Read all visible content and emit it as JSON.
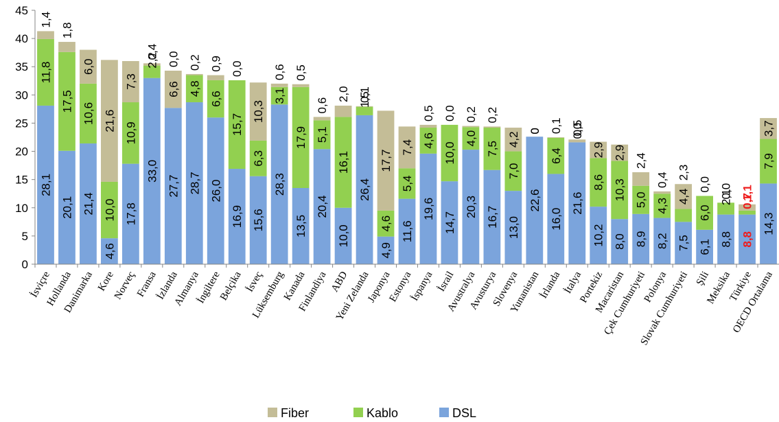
{
  "chart_data": {
    "type": "bar",
    "stacked": true,
    "title": "",
    "xlabel": "",
    "ylabel": "",
    "ylim": [
      0,
      45
    ],
    "yticks": [
      0,
      5,
      10,
      15,
      20,
      25,
      30,
      35,
      40,
      45
    ],
    "ytick_labels": [
      "0",
      "5",
      "10",
      "15",
      "20",
      "25",
      "30",
      "35",
      "40",
      "45"
    ],
    "grid": false,
    "legend_position": "bottom",
    "categories": [
      "İsviçre",
      "Hollanda",
      "Danimarka",
      "Kore",
      "Norveç",
      "Fransa",
      "İzlanda",
      "Almanya",
      "İngiltere",
      "Belçika",
      "İsveç",
      "Lüksemburg",
      "Kanada",
      "Finlandiya",
      "ABD",
      "Yeni Zelanda",
      "Japonya",
      "Estonya",
      "İspanya",
      "İsrail",
      "Avustralya",
      "Avusturya",
      "Slovenya",
      "Yunanistan",
      "İrlanda",
      "İtalya",
      "Portekiz",
      "Macaristan",
      "Çek Cumhuriyeti",
      "Polonya",
      "Slovak Cumhuriyeti",
      "Şili",
      "Meksika",
      "Türkiye",
      "OECD Ortalama"
    ],
    "highlight_category": "Türkiye",
    "highlight_color": "#ee1c1c",
    "series": [
      {
        "name": "DSL",
        "color": "#7ba4dc",
        "values": [
          28.1,
          20.1,
          21.4,
          4.6,
          17.8,
          33.0,
          27.7,
          28.7,
          26.0,
          16.9,
          15.6,
          28.3,
          13.5,
          20.4,
          10.0,
          26.4,
          4.9,
          11.6,
          19.6,
          14.7,
          20.3,
          16.7,
          13.0,
          22.6,
          16.0,
          21.6,
          10.2,
          8.0,
          8.9,
          8.2,
          7.5,
          6.1,
          8.8,
          8.8,
          14.3
        ],
        "labels": [
          "28,1",
          "20,1",
          "21,4",
          "4,6",
          "17,8",
          "33,0",
          "27,7",
          "28,7",
          "26,0",
          "16,9",
          "15,6",
          "28,3",
          "13,5",
          "20,4",
          "10,0",
          "26,4",
          "4,9",
          "11,6",
          "19,6",
          "14,7",
          "20,3",
          "16,7",
          "13,0",
          "22,6",
          "16,0",
          "21,6",
          "10,2",
          "8,0",
          "8,9",
          "8,2",
          "7,5",
          "6,1",
          "8,8",
          "8,8",
          "14,3"
        ]
      },
      {
        "name": "Kablo",
        "color": "#92d050",
        "values": [
          11.8,
          17.5,
          10.6,
          10.0,
          10.9,
          2.2,
          0.0,
          4.8,
          6.6,
          15.7,
          6.3,
          3.1,
          17.9,
          5.1,
          16.1,
          1.5,
          4.6,
          5.4,
          4.6,
          10.0,
          4.0,
          7.5,
          7.0,
          0.0,
          6.4,
          0.0,
          8.6,
          10.3,
          5.0,
          4.3,
          2.3,
          6.0,
          2.1,
          0.7,
          7.9
        ],
        "labels": [
          "11,8",
          "17,5",
          "10,6",
          "10,0",
          "10,9",
          "2,2",
          "0,0",
          "4,8",
          "6,6",
          "15,7",
          "6,3",
          "3,1",
          "17,9",
          "5,1",
          "16,1",
          "1,5",
          "4,6",
          "5,4",
          "4,6",
          "10,0",
          "4,0",
          "7,5",
          "7,0",
          "0",
          "6,4",
          "0,0",
          "8,6",
          "10,3",
          "5,0",
          "4,3",
          "2,3",
          "6,0",
          "2,1",
          "0,7",
          "7,9"
        ]
      },
      {
        "name": "Fiber",
        "color": "#c4bd97",
        "values": [
          1.4,
          1.8,
          6.0,
          21.6,
          7.3,
          0.4,
          6.6,
          0.2,
          0.9,
          0.0,
          10.3,
          0.6,
          0.5,
          0.6,
          2.0,
          0.1,
          17.7,
          7.4,
          0.5,
          0.0,
          0.2,
          0.2,
          4.2,
          0.0,
          0.1,
          0.5,
          2.9,
          2.9,
          2.4,
          0.4,
          4.4,
          0.0,
          0.0,
          1.1,
          3.7
        ],
        "labels": [
          "1,4",
          "1,8",
          "6,0",
          "21,6",
          "7,3",
          "0,4",
          "6,6",
          "0,2",
          "0,9",
          "0,0",
          "10,3",
          "0,6",
          "0,5",
          "0,6",
          "2,0",
          "0,1",
          "17,7",
          "7,4",
          "0,5",
          "0,0",
          "0,2",
          "0,2",
          "4,2",
          "0",
          "0,1",
          "0,5",
          "2,9",
          "2,9",
          "2,4",
          "0,4",
          "4,4",
          "0,0",
          "0,0",
          "1,1",
          "3,7"
        ]
      }
    ],
    "legend": [
      {
        "name": "Fiber",
        "color": "#c4bd97"
      },
      {
        "name": "Kablo",
        "color": "#92d050"
      },
      {
        "name": "DSL",
        "color": "#7ba4dc"
      }
    ]
  }
}
